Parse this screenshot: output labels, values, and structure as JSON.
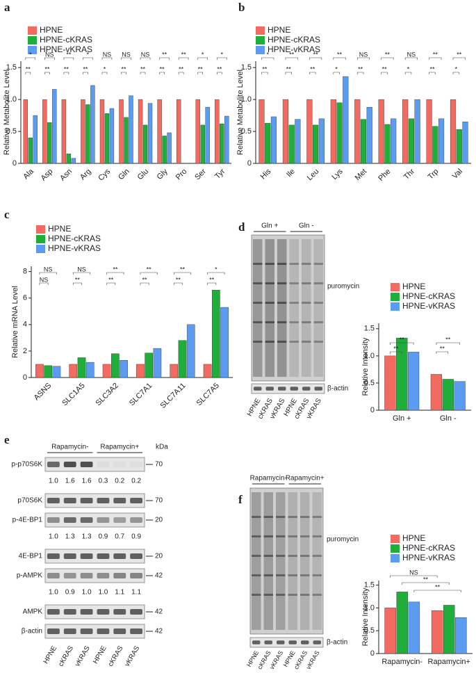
{
  "chart_data": [
    {
      "type": "bar",
      "panel_label": "a",
      "y_label": "Relative Metabolite Level",
      "categories": [
        "Ala",
        "Asp",
        "Asn",
        "Arg",
        "Cys",
        "Gln",
        "Glu",
        "Gly",
        "Pro",
        "Ser",
        "Tyr"
      ],
      "series": [
        {
          "name": "HPNE",
          "color": "#f26b60",
          "values": [
            1.0,
            1.0,
            1.0,
            1.0,
            1.0,
            1.0,
            1.0,
            1.0,
            1.0,
            1.0,
            1.0
          ]
        },
        {
          "name": "HPNE-cKRAS",
          "color": "#1fae3a",
          "values": [
            0.4,
            0.64,
            0.15,
            0.92,
            0.78,
            0.72,
            0.6,
            0.43,
            0.0,
            0.6,
            0.62
          ]
        },
        {
          "name": "HPNE-vKRAS",
          "color": "#5b9cf0",
          "values": [
            0.75,
            1.16,
            0.08,
            1.22,
            0.86,
            1.06,
            0.94,
            0.48,
            0.0,
            0.88,
            0.74
          ]
        }
      ],
      "ylim": [
        0,
        1.6
      ],
      "yticks": [
        0,
        0.5,
        {
          "value": 1,
          "label": "1.0"
        },
        1.5
      ],
      "significance": {
        "vkras": [
          "*",
          "NS",
          "**",
          "*",
          "NS",
          "NS",
          "NS",
          "**",
          "**",
          "*",
          "*"
        ],
        "ckras": [
          "**",
          "**",
          "**",
          "**",
          "*",
          "**",
          "**",
          "**",
          "**",
          "**",
          "**"
        ]
      }
    },
    {
      "type": "bar",
      "panel_label": "b",
      "y_label": "Relative Metabolite Level",
      "categories": [
        "His",
        "Ile",
        "Leu",
        "Lys",
        "Met",
        "Phe",
        "Thr",
        "Trp",
        "Val"
      ],
      "series": [
        {
          "name": "HPNE",
          "color": "#f26b60",
          "values": [
            1.0,
            1.0,
            1.0,
            1.0,
            1.0,
            1.0,
            1.0,
            1.0,
            1.0
          ]
        },
        {
          "name": "HPNE-cKRAS",
          "color": "#1fae3a",
          "values": [
            0.63,
            0.6,
            0.6,
            0.95,
            0.69,
            0.61,
            0.7,
            0.58,
            0.53
          ]
        },
        {
          "name": "HPNE-vKRAS",
          "color": "#5b9cf0",
          "values": [
            0.73,
            0.69,
            0.7,
            1.36,
            0.88,
            0.7,
            1.0,
            0.7,
            0.65
          ]
        }
      ],
      "ylim": [
        0,
        1.6
      ],
      "yticks": [
        0,
        0.5,
        {
          "value": 1,
          "label": "1.0"
        },
        1.5
      ],
      "significance": {
        "vkras": [
          "*",
          "**",
          "**",
          "**",
          "NS",
          "**",
          "NS",
          "**",
          "**"
        ],
        "ckras": [
          "**",
          "**",
          "**",
          "*",
          "**",
          "**",
          "*",
          "**",
          "*"
        ]
      }
    },
    {
      "type": "bar",
      "panel_label": "c",
      "y_label": "Relative mRNA Level",
      "categories": [
        "ASNS",
        "SLC1A5",
        "SLC3A2",
        "SLC7A1",
        "SLC7A11",
        "SLC7A5"
      ],
      "series": [
        {
          "name": "HPNE",
          "color": "#f26b60",
          "values": [
            1.0,
            1.0,
            1.0,
            1.0,
            1.0,
            1.0
          ]
        },
        {
          "name": "HPNE-cKRAS",
          "color": "#1fae3a",
          "values": [
            0.9,
            1.5,
            1.8,
            1.85,
            2.8,
            6.6
          ]
        },
        {
          "name": "HPNE-vKRAS",
          "color": "#5b9cf0",
          "values": [
            0.85,
            1.15,
            1.3,
            2.2,
            4.0,
            5.3
          ]
        }
      ],
      "ylim": [
        0,
        8.4
      ],
      "yticks": [
        0,
        2,
        4,
        6,
        8
      ],
      "significance": {
        "vkras": [
          "NS",
          "NS",
          "**",
          "**",
          "**",
          "*"
        ],
        "ckras": [
          "NS",
          "**",
          "**",
          "**",
          "**",
          "**"
        ]
      }
    },
    {
      "type": "bar",
      "panel_label": "d",
      "y_label": "Relative Intensity",
      "categories": [
        "Gln +",
        "Gln -"
      ],
      "series": [
        {
          "name": "HPNE",
          "color": "#f26b60",
          "values": [
            1.0,
            0.66
          ]
        },
        {
          "name": "HPNE-cKRAS",
          "color": "#1fae3a",
          "values": [
            1.33,
            0.57
          ]
        },
        {
          "name": "HPNE-vKRAS",
          "color": "#5b9cf0",
          "values": [
            1.07,
            0.53
          ]
        }
      ],
      "ylim": [
        0,
        1.6
      ],
      "yticks": [
        0,
        0.5,
        {
          "value": 1,
          "label": "1.0"
        },
        1.5
      ],
      "significance": {
        "vkras": [
          "**",
          "**"
        ],
        "ckras": [
          "**",
          "**"
        ]
      }
    },
    {
      "type": "bar",
      "panel_label": "f",
      "y_label": "Relative Intensity",
      "categories": [
        "Rapamycin-",
        "Rapamycin+"
      ],
      "series": [
        {
          "name": "HPNE",
          "color": "#f26b60",
          "values": [
            1.0,
            0.94
          ]
        },
        {
          "name": "HPNE-cKRAS",
          "color": "#1fae3a",
          "values": [
            1.35,
            1.06
          ]
        },
        {
          "name": "HPNE-vKRAS",
          "color": "#5b9cf0",
          "values": [
            1.13,
            0.79
          ]
        }
      ],
      "ylim": [
        0,
        1.6
      ],
      "yticks": [
        0,
        0.5,
        {
          "value": 1,
          "label": "1.0"
        },
        1.5
      ],
      "comparisons": [
        "NS",
        "**",
        "**"
      ]
    }
  ],
  "blots": {
    "d": {
      "groups": [
        "Gln +",
        "Gln -"
      ],
      "main_label": "puromycin",
      "loading_label": "β-actin",
      "lanes": [
        "HPNE",
        "cKRAS",
        "vKRAS",
        "HPNE",
        "cKRAS",
        "vKRAS"
      ]
    },
    "e": {
      "panel_label": "e",
      "groups": [
        "Rapamycin-",
        "Rapamycin+"
      ],
      "unit": "kDa",
      "rows": [
        {
          "label": "p-p70S6K",
          "kda": 70,
          "quant": [
            "1.0",
            "1.6",
            "1.6",
            "0.3",
            "0.2",
            "0.2"
          ]
        },
        {
          "label": "p70S6K",
          "kda": 70
        },
        {
          "label": "p-4E-BP1",
          "kda": 20,
          "quant": [
            "1.0",
            "1.3",
            "1.3",
            "0.9",
            "0.7",
            "0.9"
          ]
        },
        {
          "label": "4E-BP1",
          "kda": 20
        },
        {
          "label": "p-AMPK",
          "kda": 42,
          "quant": [
            "1.0",
            "0.9",
            "1.0",
            "1.0",
            "1.1",
            "1.1"
          ]
        },
        {
          "label": "AMPK",
          "kda": 42
        },
        {
          "label": "β-actin",
          "kda": 42
        }
      ],
      "lanes": [
        "HPNE",
        "cKRAS",
        "vKRAS",
        "HPNE",
        "cKRAS",
        "vKRAS"
      ]
    },
    "f": {
      "groups": [
        "Rapamycin-",
        "Rapamycin+"
      ],
      "main_label": "puromycin",
      "loading_label": "β-actin",
      "lanes": [
        "HPNE",
        "cKRAS",
        "vKRAS",
        "HPNE",
        "cKRAS",
        "vKRAS"
      ]
    }
  }
}
